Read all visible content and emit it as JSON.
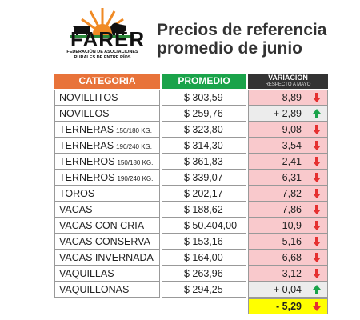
{
  "logo": {
    "name": "FARER",
    "line1": "FEDERACIÓN DE ASOCIACIONES",
    "line2": "RURALES DE ENTRE RÍOS"
  },
  "header": {
    "title_line1": "Precios de referencia",
    "title_line2": "promedio de junio"
  },
  "table": {
    "columns": {
      "category": "CATEGORIA",
      "price": "PROMEDIO",
      "variation": "VARIACIÓN",
      "variation_sub": "RESPECTO A  MAYO"
    },
    "rows": [
      {
        "category": "NOVILLITOS",
        "price": "$ 303,59",
        "variation": "- 8,89"
      },
      {
        "category": "NOVILLOS",
        "price": "$ 259,76",
        "variation": "+ 2,89"
      },
      {
        "category": "TERNERAS",
        "detail": "150/180 KG.",
        "price": "$ 323,80",
        "variation": "- 9,08"
      },
      {
        "category": "TERNERAS",
        "detail": "190/240 KG.",
        "price": "$ 314,30",
        "variation": "- 3,54"
      },
      {
        "category": "TERNEROS",
        "detail": "150/180 KG.",
        "price": "$ 361,83",
        "variation": "- 2,41"
      },
      {
        "category": "TERNEROS",
        "detail": "190/240 KG.",
        "price": "$ 339,07",
        "variation": "- 6,31"
      },
      {
        "category": "TOROS",
        "price": "$ 202,17",
        "variation": "- 7,82"
      },
      {
        "category": "VACAS",
        "price": "$ 188,62",
        "variation": "- 7,86"
      },
      {
        "category": "VACAS CON CRIA",
        "price": "$ 50.404,00",
        "variation": "- 10,9"
      },
      {
        "category": "VACAS CONSERVA",
        "price": "$ 153,16",
        "variation": "- 5,16"
      },
      {
        "category": "VACAS INVERNADA",
        "price": "$ 164,00",
        "variation": "- 6,68"
      },
      {
        "category": "VAQUILLAS",
        "price": "$ 263,96",
        "variation": "- 3,12"
      },
      {
        "category": "VAQUILLONAS",
        "price": "$ 294,25",
        "variation": "+ 0,04"
      }
    ],
    "total_variation": "- 5,29"
  }
}
